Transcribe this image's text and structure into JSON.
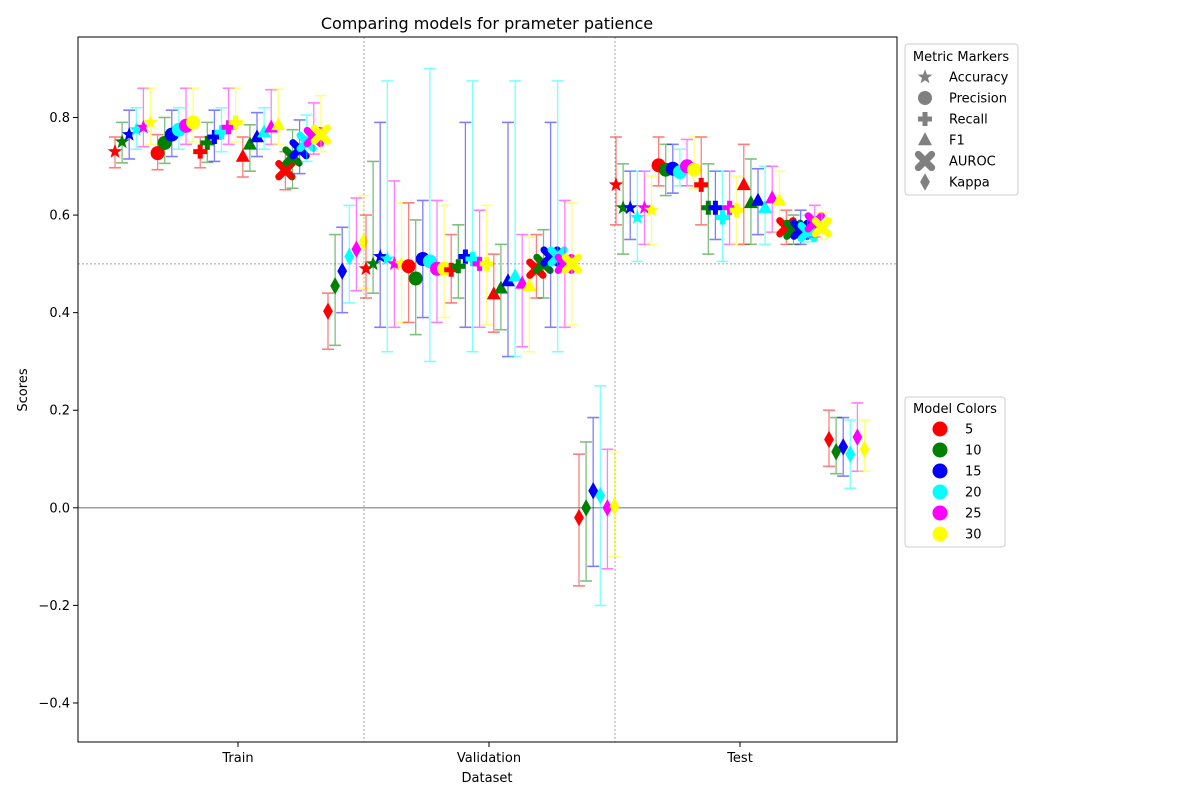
{
  "chart_data": {
    "type": "scatter",
    "title": "Comparing models for prameter patience",
    "xlabel": "Dataset",
    "ylabel": "Scores",
    "categories": [
      "Train",
      "Validation",
      "Test"
    ],
    "ylim": [
      -0.48,
      0.965
    ],
    "yticks": [
      "−0.4",
      "−0.2",
      "0.0",
      "0.2",
      "0.4",
      "0.6",
      "0.8"
    ],
    "ytick_values": [
      -0.4,
      -0.2,
      0.0,
      0.2,
      0.4,
      0.6,
      0.8
    ],
    "hlines": [
      0.0,
      0.5
    ],
    "grid": false,
    "metric_legend": {
      "title": "Metric Markers",
      "items": [
        {
          "label": "Accuracy",
          "marker": "star"
        },
        {
          "label": "Precision",
          "marker": "circle"
        },
        {
          "label": "Recall",
          "marker": "plus"
        },
        {
          "label": "F1",
          "marker": "triangle"
        },
        {
          "label": "AUROC",
          "marker": "x"
        },
        {
          "label": "Kappa",
          "marker": "diamond"
        }
      ]
    },
    "model_legend": {
      "title": "Model Colors",
      "items": [
        {
          "label": "5",
          "color": "#ff0000"
        },
        {
          "label": "10",
          "color": "#008000"
        },
        {
          "label": "15",
          "color": "#0000ff"
        },
        {
          "label": "20",
          "color": "#00ffff"
        },
        {
          "label": "25",
          "color": "#ff00ff"
        },
        {
          "label": "30",
          "color": "#ffff00"
        }
      ]
    },
    "series_models": [
      "5",
      "10",
      "15",
      "20",
      "25",
      "30"
    ],
    "metrics": [
      "Accuracy",
      "Precision",
      "Recall",
      "F1",
      "AUROC",
      "Kappa"
    ],
    "datasets": {
      "Train": {
        "Accuracy": {
          "mean": [
            0.73,
            0.75,
            0.765,
            0.775,
            0.78,
            0.79
          ],
          "low": [
            0.697,
            0.707,
            0.715,
            0.735,
            0.74,
            0.745
          ],
          "high": [
            0.76,
            0.79,
            0.815,
            0.82,
            0.86,
            0.86
          ]
        },
        "Precision": {
          "mean": [
            0.727,
            0.748,
            0.765,
            0.775,
            0.783,
            0.79
          ],
          "low": [
            0.693,
            0.706,
            0.72,
            0.735,
            0.745,
            0.75
          ],
          "high": [
            0.765,
            0.8,
            0.815,
            0.82,
            0.86,
            0.86
          ]
        },
        "Recall": {
          "mean": [
            0.73,
            0.748,
            0.76,
            0.77,
            0.78,
            0.79
          ],
          "low": [
            0.697,
            0.708,
            0.71,
            0.73,
            0.745,
            0.75
          ],
          "high": [
            0.76,
            0.79,
            0.815,
            0.82,
            0.86,
            0.86
          ]
        },
        "F1": {
          "mean": [
            0.72,
            0.745,
            0.76,
            0.77,
            0.78,
            0.785
          ],
          "low": [
            0.678,
            0.69,
            0.72,
            0.735,
            0.745,
            0.745
          ],
          "high": [
            0.76,
            0.785,
            0.81,
            0.82,
            0.857,
            0.858
          ]
        },
        "AUROC": {
          "mean": [
            0.692,
            0.72,
            0.735,
            0.75,
            0.76,
            0.765
          ],
          "low": [
            0.652,
            0.655,
            0.685,
            0.71,
            0.725,
            0.73
          ],
          "high": [
            0.73,
            0.775,
            0.795,
            0.805,
            0.83,
            0.845
          ]
        },
        "Kappa": {
          "mean": [
            0.403,
            0.455,
            0.485,
            0.515,
            0.53,
            0.545
          ],
          "low": [
            0.325,
            0.333,
            0.4,
            0.42,
            0.445,
            0.45
          ],
          "high": [
            0.44,
            0.56,
            0.575,
            0.62,
            0.635,
            0.64
          ]
        }
      },
      "Validation": {
        "Accuracy": {
          "mean": [
            0.49,
            0.5,
            0.515,
            0.51,
            0.5,
            0.5
          ],
          "low": [
            0.43,
            0.44,
            0.37,
            0.32,
            0.37,
            0.38
          ],
          "high": [
            0.6,
            0.71,
            0.79,
            0.875,
            0.67,
            0.625
          ]
        },
        "Precision": {
          "mean": [
            0.495,
            0.47,
            0.51,
            0.505,
            0.49,
            0.49
          ],
          "low": [
            0.38,
            0.355,
            0.39,
            0.3,
            0.38,
            0.39
          ],
          "high": [
            0.625,
            0.59,
            0.63,
            0.9,
            0.63,
            0.62
          ]
        },
        "Recall": {
          "mean": [
            0.488,
            0.495,
            0.515,
            0.51,
            0.5,
            0.5
          ],
          "low": [
            0.42,
            0.43,
            0.37,
            0.32,
            0.37,
            0.375
          ],
          "high": [
            0.56,
            0.58,
            0.79,
            0.875,
            0.61,
            0.62
          ]
        },
        "F1": {
          "mean": [
            0.438,
            0.45,
            0.465,
            0.475,
            0.46,
            0.455
          ],
          "low": [
            0.36,
            0.365,
            0.31,
            0.31,
            0.33,
            0.32
          ],
          "high": [
            0.52,
            0.54,
            0.79,
            0.875,
            0.56,
            0.555
          ]
        },
        "AUROC": {
          "mean": [
            0.49,
            0.5,
            0.515,
            0.515,
            0.5,
            0.5
          ],
          "low": [
            0.43,
            0.43,
            0.37,
            0.32,
            0.37,
            0.375
          ],
          "high": [
            0.56,
            0.57,
            0.79,
            0.875,
            0.63,
            0.625
          ]
        },
        "Kappa": {
          "mean": [
            -0.02,
            0.0,
            0.035,
            0.025,
            0.0,
            0.003
          ],
          "low": [
            -0.16,
            -0.15,
            -0.12,
            -0.2,
            -0.125,
            -0.1
          ],
          "high": [
            0.11,
            0.135,
            0.185,
            0.25,
            0.12,
            0.115
          ]
        }
      },
      "Test": {
        "Accuracy": {
          "mean": [
            0.662,
            0.615,
            0.615,
            0.595,
            0.615,
            0.61
          ],
          "low": [
            0.58,
            0.52,
            0.55,
            0.505,
            0.54,
            0.54
          ],
          "high": [
            0.76,
            0.705,
            0.69,
            0.69,
            0.69,
            0.68
          ]
        },
        "Precision": {
          "mean": [
            0.702,
            0.693,
            0.695,
            0.688,
            0.7,
            0.693
          ],
          "low": [
            0.66,
            0.64,
            0.645,
            0.66,
            0.66,
            0.655
          ],
          "high": [
            0.76,
            0.745,
            0.745,
            0.735,
            0.755,
            0.76
          ]
        },
        "Recall": {
          "mean": [
            0.662,
            0.615,
            0.615,
            0.595,
            0.615,
            0.61
          ],
          "low": [
            0.58,
            0.52,
            0.55,
            0.505,
            0.54,
            0.54
          ],
          "high": [
            0.76,
            0.705,
            0.69,
            0.69,
            0.69,
            0.68
          ]
        },
        "F1": {
          "mean": [
            0.662,
            0.625,
            0.63,
            0.615,
            0.635,
            0.63
          ],
          "low": [
            0.54,
            0.54,
            0.56,
            0.54,
            0.565,
            0.565
          ],
          "high": [
            0.745,
            0.715,
            0.695,
            0.7,
            0.7,
            0.69
          ]
        },
        "AUROC": {
          "mean": [
            0.575,
            0.57,
            0.57,
            0.565,
            0.585,
            0.575
          ],
          "low": [
            0.54,
            0.54,
            0.54,
            0.545,
            0.555,
            0.55
          ],
          "high": [
            0.61,
            0.6,
            0.61,
            0.6,
            0.62,
            0.605
          ]
        },
        "Kappa": {
          "mean": [
            0.14,
            0.115,
            0.125,
            0.11,
            0.145,
            0.12
          ],
          "low": [
            0.085,
            0.07,
            0.065,
            0.04,
            0.075,
            0.075
          ],
          "high": [
            0.2,
            0.185,
            0.185,
            0.18,
            0.215,
            0.18
          ]
        }
      }
    }
  }
}
